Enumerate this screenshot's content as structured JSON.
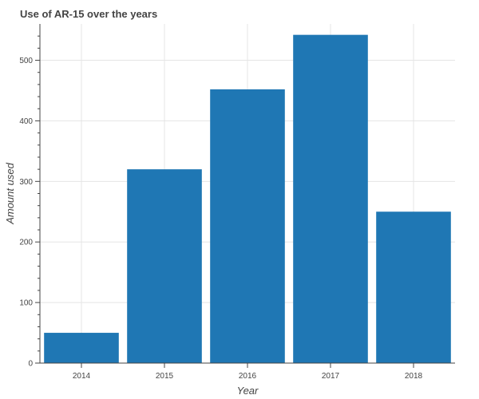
{
  "chart_data": {
    "type": "bar",
    "title": "Use of AR-15 over the years",
    "xlabel": "Year",
    "ylabel": "Amount used",
    "categories": [
      "2014",
      "2015",
      "2016",
      "2017",
      "2018"
    ],
    "values": [
      50,
      320,
      452,
      542,
      250
    ],
    "ylim": [
      0,
      560
    ],
    "yticks": [
      0,
      100,
      200,
      300,
      400,
      500
    ],
    "grid": true,
    "bar_color": "#1f77b4",
    "grid_color": "#e5e5e5",
    "axis_color": "#444444"
  }
}
